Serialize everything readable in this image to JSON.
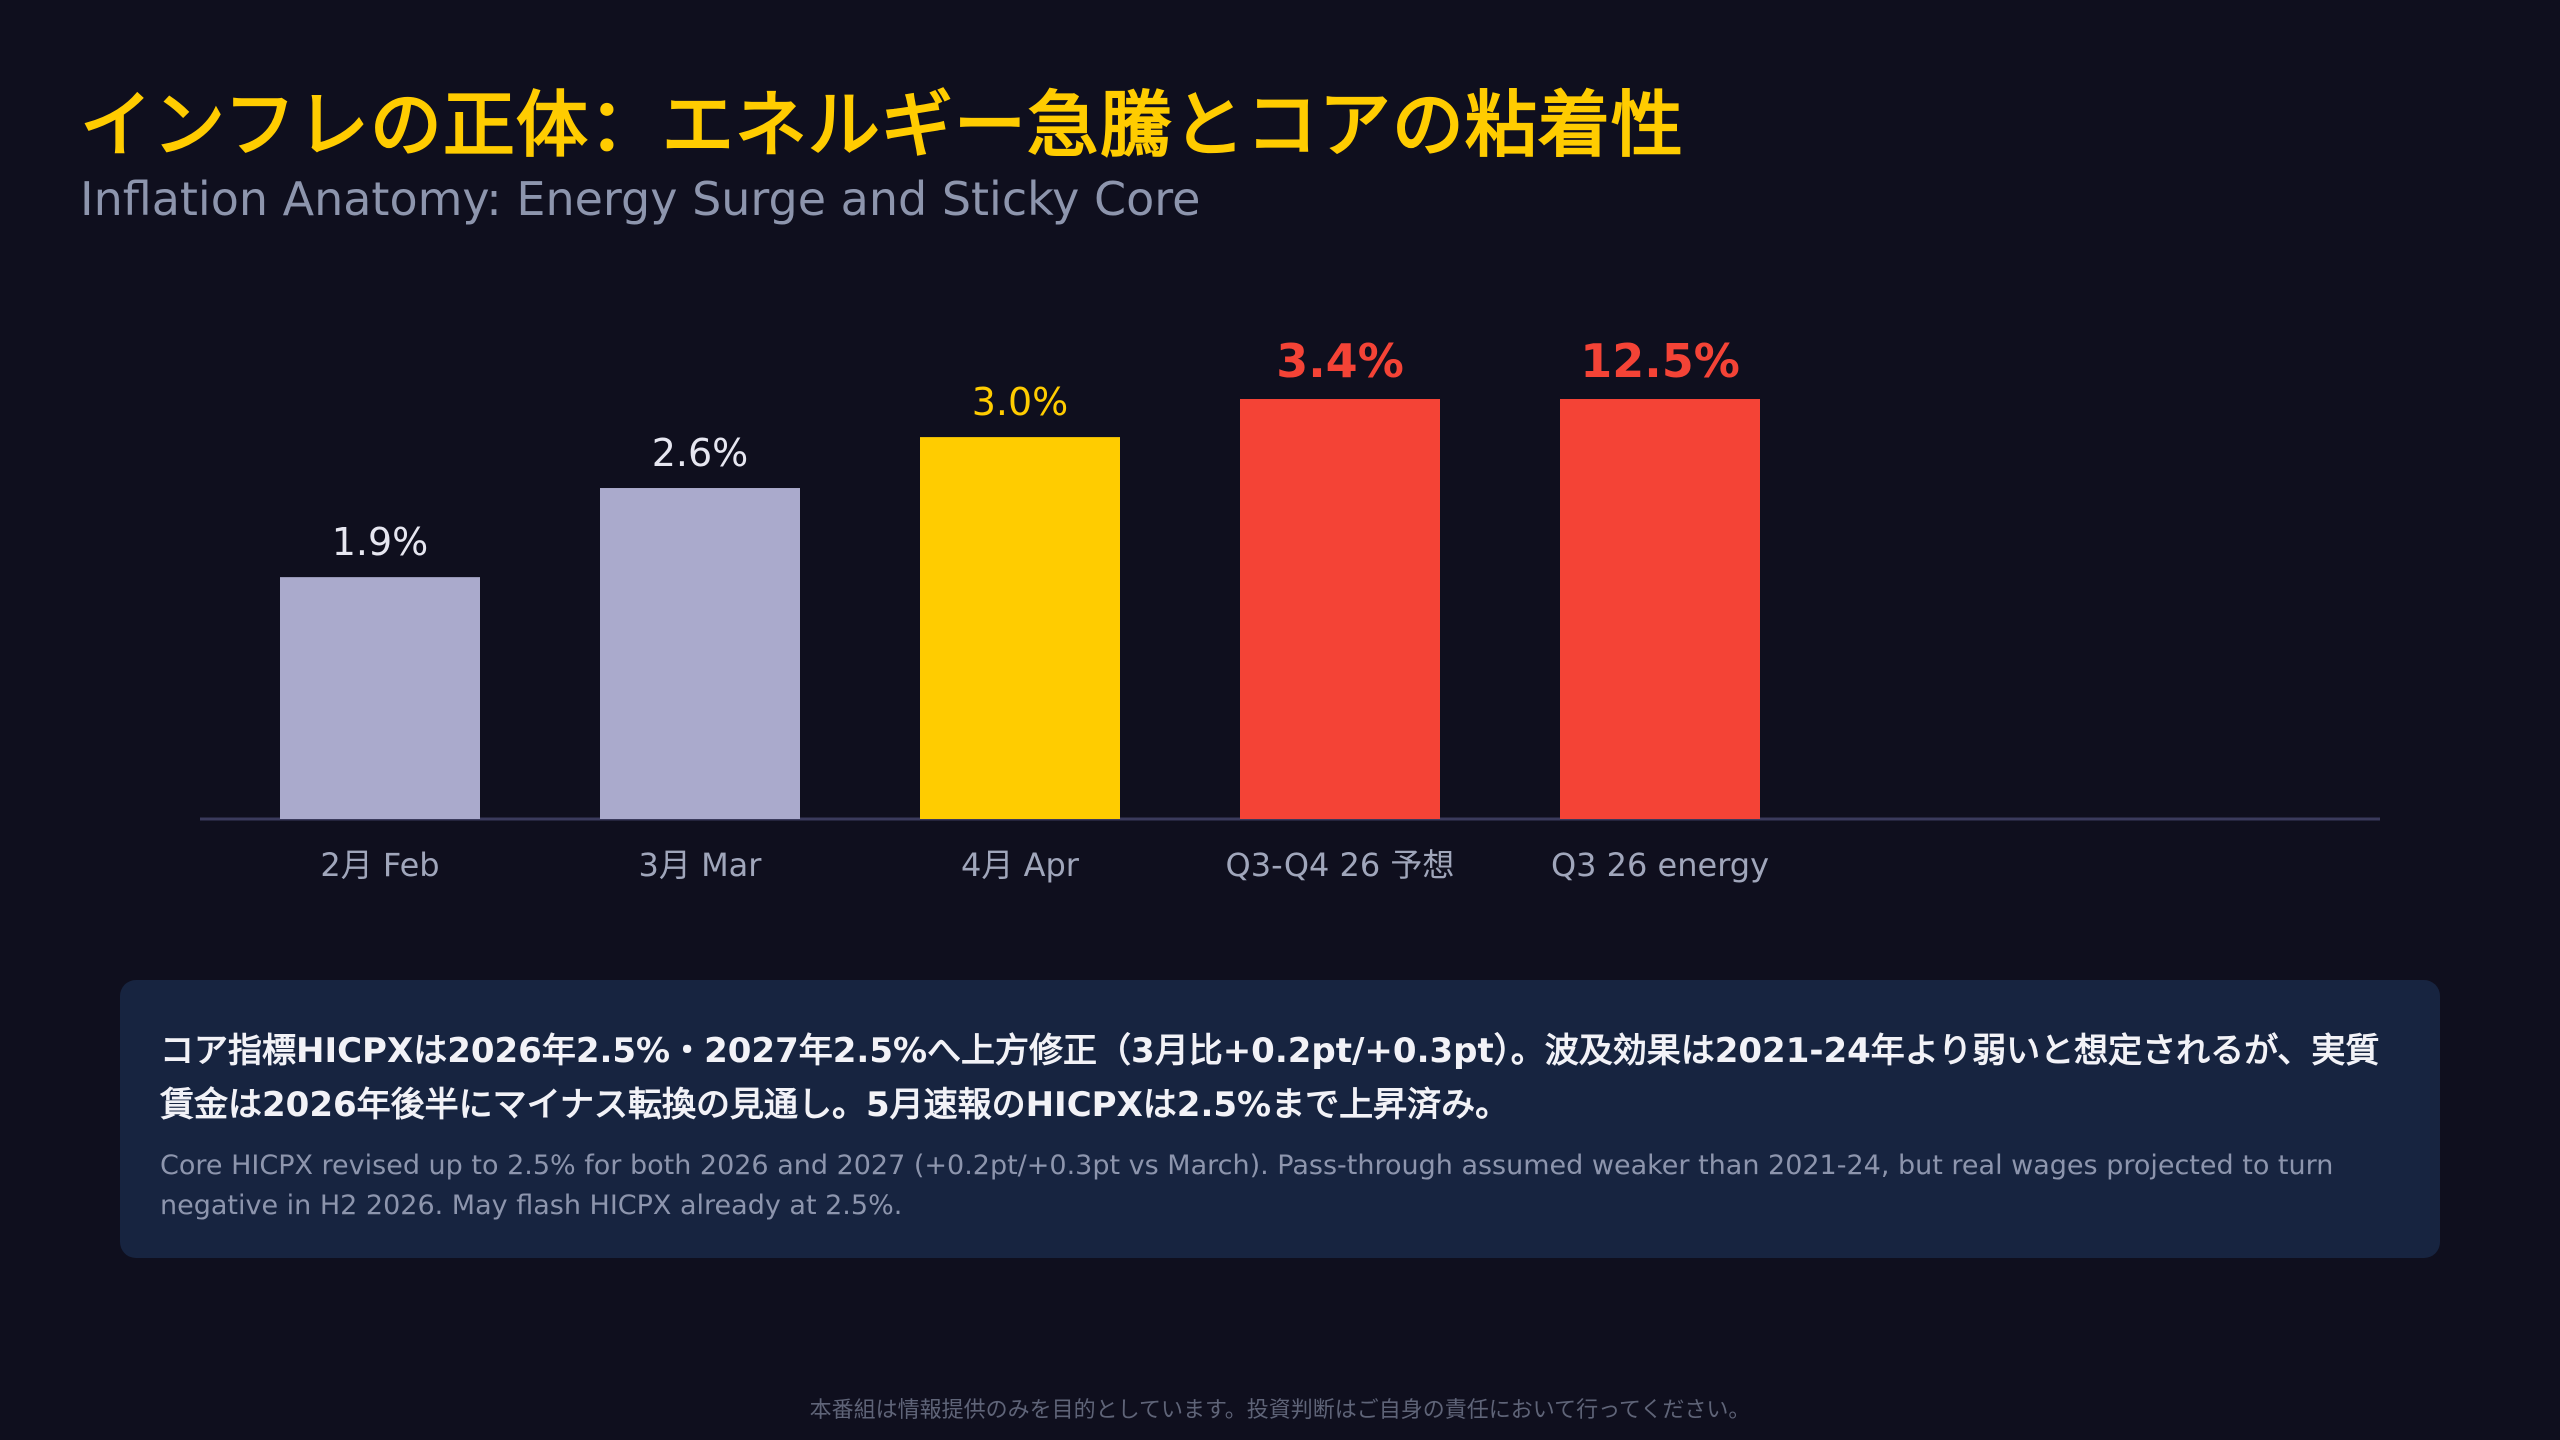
{
  "header": {
    "title": "インフレの正体：エネルギー急騰とコアの粘着性",
    "subtitle": "Inflation Anatomy: Energy Surge and Sticky Core"
  },
  "chart_data": {
    "type": "bar",
    "categories": [
      "2月 Feb",
      "3月 Mar",
      "4月 Apr",
      "Q3-Q4 26 予想",
      "Q3 26 energy"
    ],
    "values": [
      1.9,
      2.6,
      3.0,
      3.4,
      12.5
    ],
    "value_labels": [
      "1.9%",
      "2.6%",
      "3.0%",
      "3.4%",
      "12.5%"
    ],
    "colors": [
      "#aaaacc",
      "#aaaacc",
      "#ffcc00",
      "#f44336",
      "#f44336"
    ],
    "label_colors": [
      "#e6e6f0",
      "#e6e6f0",
      "#ffcc00",
      "#f44336",
      "#f44336"
    ],
    "bold_labels": [
      false,
      false,
      false,
      true,
      true
    ],
    "axis_color": "#3a3a5c",
    "tick_label_color": "#a0a6bb",
    "title": "",
    "xlabel": "",
    "ylabel": "",
    "grid": false
  },
  "note": {
    "jp": "コア指標HICPXは2026年2.5%・2027年2.5%へ上方修正（3月比+0.2pt/+0.3pt）。波及効果は2021-24年より弱いと想定されるが、実質賃金は2026年後半にマイナス転換の見通し。5月速報のHICPXは2.5%まで上昇済み。",
    "en": "Core HICPX revised up to 2.5% for both 2026 and 2027 (+0.2pt/+0.3pt vs March). Pass-through assumed weaker than 2021-24, but real wages projected to turn negative in H2 2026. May flash HICPX already at 2.5%."
  },
  "footer": {
    "disclaimer": "本番組は情報提供のみを目的としています。投資判断はご自身の責任において行ってください。"
  }
}
